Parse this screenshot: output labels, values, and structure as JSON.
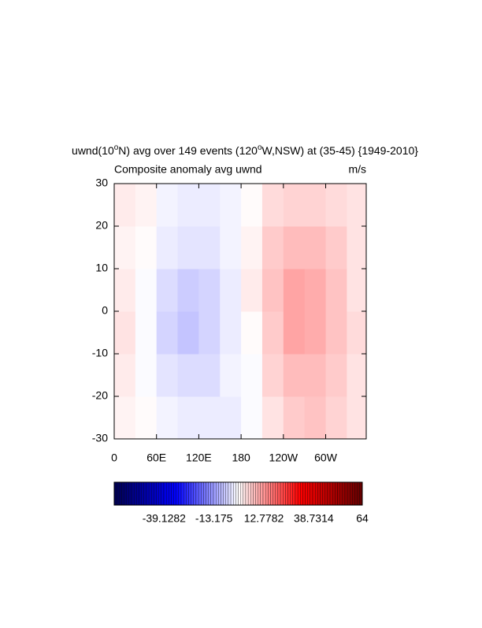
{
  "chart_data": {
    "type": "heatmap",
    "title_parts": [
      "uwnd(10",
      "o",
      "N) avg over 149 events (120",
      "o",
      "W,NSW) at (35-45) {1949-2010}"
    ],
    "left_subtitle": "Composite anomaly avg uwnd",
    "right_subtitle": "m/s",
    "x": [
      15,
      45,
      75,
      105,
      135,
      165,
      195,
      225,
      255,
      285,
      315,
      345
    ],
    "y": [
      -25,
      -15,
      -5,
      5,
      15,
      25
    ],
    "values": [
      [
        1,
        0,
        -2,
        -3,
        -3,
        -3,
        -1,
        3,
        6,
        7,
        5,
        3
      ],
      [
        2,
        -1,
        -4,
        -5,
        -5,
        -2,
        -1,
        5,
        8,
        8,
        6,
        3
      ],
      [
        3,
        -1,
        -6,
        -8,
        -6,
        -3,
        0,
        6,
        11,
        10,
        7,
        4
      ],
      [
        2,
        -1,
        -5,
        -7,
        -6,
        -3,
        2,
        7,
        11,
        10,
        7,
        3
      ],
      [
        1,
        0,
        -3,
        -4,
        -4,
        -2,
        1,
        6,
        8,
        8,
        6,
        3
      ],
      [
        2,
        1,
        -2,
        -3,
        -3,
        -2,
        0,
        4,
        5,
        5,
        4,
        3
      ]
    ],
    "xlim": [
      0,
      357.5
    ],
    "ylim": [
      -30,
      30
    ],
    "xticks": [
      0,
      {
        "value": 60,
        "label": "60E"
      },
      {
        "value": 120,
        "label": "120E"
      },
      180,
      {
        "value": 240,
        "label": "120W"
      },
      {
        "value": 300,
        "label": "60W"
      }
    ],
    "yticks": [
      -30,
      -20,
      -10,
      0,
      10,
      20,
      30
    ],
    "colorbar": {
      "range": [
        -65.0846,
        64
      ],
      "ticks": [
        -39.1282,
        -13.175,
        12.7782,
        38.7314,
        64
      ],
      "colors": [
        "#000050",
        "#0000ff",
        "#ffffff",
        "#ff0000",
        "#640000"
      ]
    }
  }
}
